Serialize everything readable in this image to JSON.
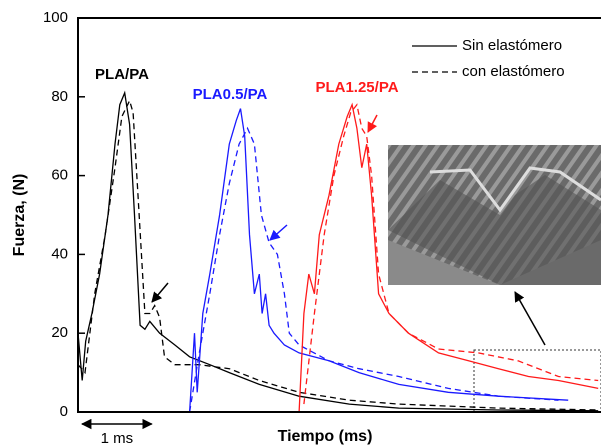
{
  "chart_data": {
    "type": "line",
    "x_label": "Tiempo (ms)",
    "y_label": "Fuerza, (N)",
    "xlim": [
      0,
      7.5
    ],
    "ylim": [
      0,
      100
    ],
    "yticks": [
      0,
      20,
      40,
      60,
      80,
      100
    ],
    "legend_position": "top-right",
    "legend": [
      {
        "label": "Sin elastómero",
        "dash": "solid"
      },
      {
        "label": "con elastómero",
        "dash": "dashed"
      }
    ],
    "groups": [
      {
        "label": "PLA/PA",
        "color": "#000000"
      },
      {
        "label": "PLA0.5/PA",
        "color": "#1a1aff"
      },
      {
        "label": "PLA1.25/PA",
        "color": "#ff1a1a"
      }
    ],
    "scale_bar": {
      "label": "1 ms",
      "length": 1
    },
    "series": [
      {
        "group": 0,
        "style": 0,
        "x": [
          0,
          0.06,
          0.11,
          0.2,
          0.31,
          0.43,
          0.53,
          0.6,
          0.67,
          0.74,
          0.81,
          0.89,
          0.96,
          1.03,
          1.17,
          1.39,
          1.6,
          1.89,
          2.17,
          2.6,
          3.17,
          3.89,
          4.6,
          6.03,
          7.46
        ],
        "values": [
          20,
          8,
          18,
          25,
          35,
          50,
          68,
          78,
          81,
          73,
          50,
          22,
          21,
          23,
          20,
          17,
          14,
          12,
          10,
          7,
          4,
          2,
          1,
          0.5,
          0.3
        ]
      },
      {
        "group": 0,
        "style": 1,
        "x": [
          0,
          0.1,
          0.24,
          0.39,
          0.53,
          0.63,
          0.74,
          0.79,
          0.86,
          0.96,
          1.03,
          1.1,
          1.17,
          1.24,
          1.39,
          1.74,
          2.17,
          2.6,
          3.17,
          3.89,
          4.6,
          6.03,
          7.46
        ],
        "values": [
          12,
          10,
          30,
          45,
          62,
          75,
          79,
          76,
          55,
          25,
          25,
          27,
          24,
          14,
          12,
          12,
          11,
          8,
          5,
          3,
          2,
          1,
          0.5
        ]
      },
      {
        "group": 1,
        "style": 0,
        "x": [
          1.6,
          1.67,
          1.71,
          1.79,
          1.89,
          2.03,
          2.17,
          2.27,
          2.33,
          2.39,
          2.46,
          2.53,
          2.6,
          2.64,
          2.69,
          2.74,
          2.81,
          2.96,
          3.17,
          3.6,
          4.03,
          4.6,
          5.31,
          6.03,
          7.03
        ],
        "values": [
          0,
          20,
          5,
          25,
          35,
          50,
          68,
          74,
          77,
          70,
          45,
          30,
          35,
          25,
          30,
          22,
          20,
          17,
          15,
          13,
          10,
          7,
          5,
          4,
          3
        ]
      },
      {
        "group": 1,
        "style": 1,
        "x": [
          1.6,
          1.74,
          1.89,
          2.03,
          2.17,
          2.31,
          2.43,
          2.53,
          2.63,
          2.74,
          2.86,
          2.96,
          3.03,
          3.17,
          3.6,
          4.03,
          4.6,
          5.31,
          6.03,
          6.89
        ],
        "values": [
          0,
          15,
          30,
          45,
          58,
          68,
          72,
          68,
          50,
          43,
          40,
          30,
          20,
          17,
          13,
          11,
          9,
          6,
          4,
          3
        ]
      },
      {
        "group": 2,
        "style": 0,
        "x": [
          3.17,
          3.24,
          3.31,
          3.39,
          3.46,
          3.6,
          3.74,
          3.86,
          3.93,
          4.0,
          4.07,
          4.14,
          4.21,
          4.31,
          4.46,
          4.74,
          5.17,
          5.6,
          6.03,
          6.46,
          6.89,
          7.46
        ],
        "values": [
          0,
          25,
          35,
          30,
          45,
          55,
          68,
          75,
          78,
          72,
          62,
          68,
          55,
          30,
          25,
          20,
          15,
          13,
          11,
          9,
          8,
          6
        ]
      },
      {
        "group": 2,
        "style": 1,
        "x": [
          3.24,
          3.39,
          3.53,
          3.67,
          3.81,
          3.91,
          4.0,
          4.07,
          4.14,
          4.21,
          4.31,
          4.46,
          4.74,
          5.17,
          5.74,
          6.31,
          6.89,
          7.46
        ],
        "values": [
          2,
          25,
          45,
          60,
          70,
          76,
          78,
          72,
          70,
          60,
          35,
          25,
          20,
          16,
          15,
          13,
          9,
          8
        ]
      }
    ]
  }
}
